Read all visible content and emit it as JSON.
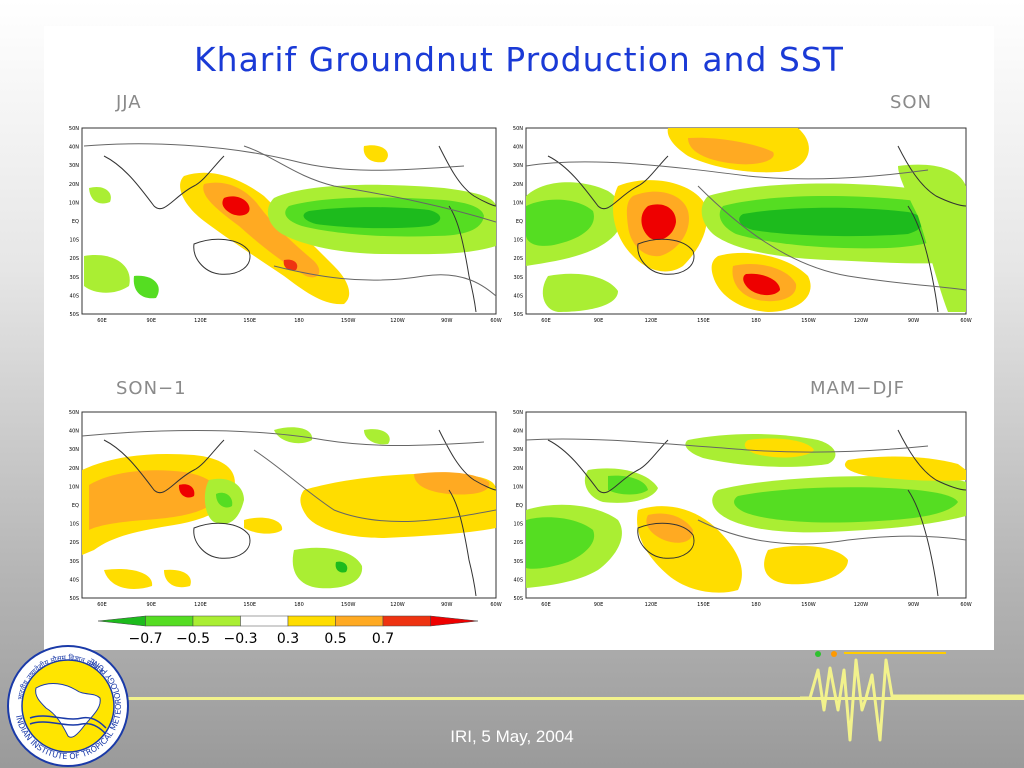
{
  "title": "Kharif Groundnut Production and SST",
  "panels": [
    {
      "id": "jja",
      "label": "JJA"
    },
    {
      "id": "son",
      "label": "SON"
    },
    {
      "id": "son1",
      "label": "SON−1"
    },
    {
      "id": "mamdjf",
      "label": "MAM−DJF"
    }
  ],
  "axes": {
    "lat_ticks": [
      "50N",
      "40N",
      "30N",
      "20N",
      "10N",
      "EQ",
      "10S",
      "20S",
      "30S",
      "40S",
      "50S"
    ],
    "lon_ticks": [
      "60E",
      "90E",
      "120E",
      "150E",
      "180",
      "150W",
      "120W",
      "90W",
      "60W"
    ]
  },
  "colorbar": {
    "labels": [
      "−0.7",
      "−0.5",
      "−0.3",
      "0.3",
      "0.5",
      "0.7"
    ],
    "colors": [
      "#1dbb1d",
      "#55dd22",
      "#aaee33",
      "#ffffff",
      "#ffdd00",
      "#ffaa22",
      "#ee3311",
      "#ee0000"
    ]
  },
  "logo": {
    "text": "INDIAN INSTITUTE OF TROPICAL METEOROLOGY PUNE",
    "hindi": "भारतीय उष्णदेशीय मौसम विज्ञान संस्थान"
  },
  "footer": "IRI, 5 May, 2004"
}
